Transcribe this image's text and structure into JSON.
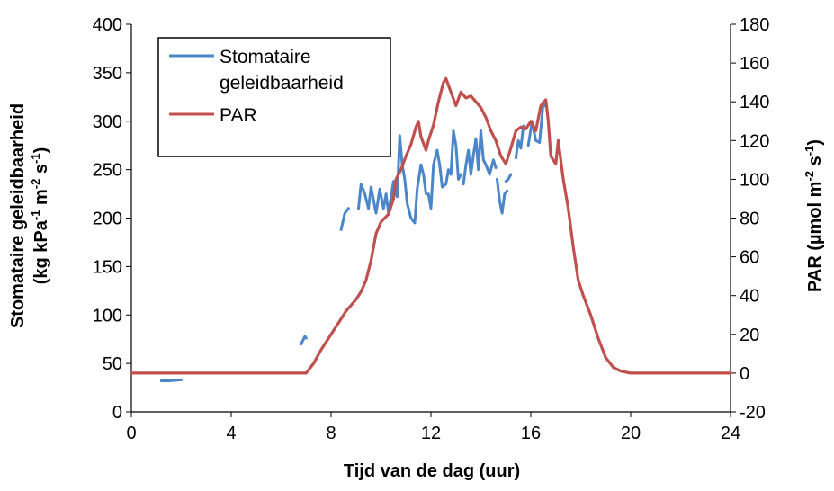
{
  "chart_data": {
    "type": "line",
    "xlabel": "Tijd van de dag (uur)",
    "ylabel_left_line1": "Stomataire geleidbaarheid",
    "ylabel_left_line2": "(kg kPa",
    "ylabel_left_sup1": "-1",
    "ylabel_left_mid": " m",
    "ylabel_left_sup2": "-2",
    "ylabel_left_mid2": " s",
    "ylabel_left_sup3": "-1",
    "ylabel_left_end": ")",
    "ylabel_right_pre": "PAR (µmol m",
    "ylabel_right_sup1": "-2",
    "ylabel_right_mid": " s",
    "ylabel_right_sup2": "-1",
    "ylabel_right_end": ")",
    "xlim": [
      0,
      24
    ],
    "ylim_left": [
      0,
      400
    ],
    "ylim_right": [
      -20,
      180
    ],
    "x_ticks": [
      "0",
      "4",
      "8",
      "12",
      "16",
      "20",
      "24"
    ],
    "y_left_ticks": [
      "0",
      "50",
      "100",
      "150",
      "200",
      "250",
      "300",
      "350",
      "400"
    ],
    "y_right_ticks": [
      "-20",
      "0",
      "20",
      "40",
      "60",
      "80",
      "100",
      "120",
      "140",
      "160",
      "180"
    ],
    "legend_position": "top-left",
    "series": [
      {
        "name_line1": "Stomataire",
        "name_line2": "geleidbaarheid",
        "axis": "left",
        "color": "#4a86c8",
        "segments": [
          [
            [
              1.2,
              32
            ],
            [
              1.5,
              32
            ],
            [
              2.0,
              33
            ]
          ],
          [
            [
              6.8,
              70
            ],
            [
              6.95,
              78
            ],
            [
              7.0,
              76
            ]
          ],
          [
            [
              8.4,
              188
            ],
            [
              8.55,
              205
            ],
            [
              8.7,
              210
            ]
          ],
          [
            [
              9.1,
              210
            ],
            [
              9.2,
              235
            ],
            [
              9.35,
              225
            ],
            [
              9.5,
              210
            ],
            [
              9.6,
              232
            ],
            [
              9.8,
              205
            ],
            [
              9.95,
              230
            ],
            [
              10.1,
              210
            ],
            [
              10.2,
              225
            ],
            [
              10.3,
              205
            ],
            [
              10.5,
              238
            ],
            [
              10.65,
              222
            ],
            [
              10.75,
              285
            ],
            [
              10.85,
              255
            ],
            [
              10.95,
              240
            ],
            [
              11.05,
              215
            ],
            [
              11.2,
              200
            ],
            [
              11.35,
              195
            ],
            [
              11.45,
              230
            ],
            [
              11.6,
              255
            ],
            [
              11.7,
              245
            ],
            [
              11.8,
              225
            ]
          ],
          [
            [
              11.9,
              225
            ],
            [
              12.0,
              210
            ],
            [
              12.1,
              255
            ],
            [
              12.25,
              270
            ],
            [
              12.35,
              255
            ],
            [
              12.45,
              232
            ],
            [
              12.6,
              235
            ],
            [
              12.7,
              250
            ],
            [
              12.8,
              245
            ],
            [
              12.9,
              290
            ],
            [
              13.0,
              275
            ],
            [
              13.1,
              240
            ],
            [
              13.2,
              245
            ]
          ],
          [
            [
              13.3,
              235
            ],
            [
              13.4,
              255
            ],
            [
              13.5,
              270
            ],
            [
              13.6,
              245
            ],
            [
              13.7,
              265
            ],
            [
              13.8,
              282
            ],
            [
              13.9,
              250
            ],
            [
              14.0,
              290
            ],
            [
              14.1,
              260
            ],
            [
              14.2,
              255
            ],
            [
              14.35,
              245
            ],
            [
              14.5,
              260
            ],
            [
              14.6,
              252
            ]
          ],
          [
            [
              14.65,
              240
            ],
            [
              14.75,
              218
            ],
            [
              14.85,
              205
            ],
            [
              14.95,
              225
            ],
            [
              15.05,
              228
            ]
          ],
          [
            [
              15.0,
              238
            ],
            [
              15.1,
              240
            ],
            [
              15.2,
              245
            ]
          ],
          [
            [
              15.4,
              262
            ],
            [
              15.5,
              280
            ],
            [
              15.6,
              272
            ],
            [
              15.7,
              295
            ]
          ],
          [
            [
              15.9,
              275
            ],
            [
              16.05,
              300
            ],
            [
              16.2,
              280
            ],
            [
              16.35,
              278
            ],
            [
              16.5,
              320
            ],
            [
              16.6,
              315
            ]
          ]
        ]
      },
      {
        "name": "PAR",
        "axis": "right",
        "color": "#c0504d",
        "points": [
          [
            0,
            0
          ],
          [
            7.0,
            0
          ],
          [
            7.3,
            5
          ],
          [
            7.6,
            12
          ],
          [
            7.9,
            18
          ],
          [
            8.1,
            22
          ],
          [
            8.4,
            28
          ],
          [
            8.6,
            32
          ],
          [
            8.8,
            35
          ],
          [
            9.0,
            38
          ],
          [
            9.2,
            42
          ],
          [
            9.4,
            48
          ],
          [
            9.6,
            58
          ],
          [
            9.8,
            72
          ],
          [
            10.0,
            78
          ],
          [
            10.3,
            82
          ],
          [
            10.5,
            90
          ],
          [
            10.6,
            100
          ],
          [
            10.8,
            105
          ],
          [
            11.0,
            112
          ],
          [
            11.2,
            118
          ],
          [
            11.4,
            127
          ],
          [
            11.5,
            130
          ],
          [
            11.6,
            122
          ],
          [
            11.8,
            115
          ],
          [
            11.9,
            120
          ],
          [
            12.1,
            128
          ],
          [
            12.3,
            140
          ],
          [
            12.5,
            150
          ],
          [
            12.6,
            152
          ],
          [
            12.8,
            145
          ],
          [
            13.0,
            138
          ],
          [
            13.2,
            145
          ],
          [
            13.4,
            142
          ],
          [
            13.6,
            143
          ],
          [
            13.8,
            140
          ],
          [
            14.0,
            137
          ],
          [
            14.2,
            132
          ],
          [
            14.4,
            125
          ],
          [
            14.6,
            120
          ],
          [
            14.8,
            112
          ],
          [
            15.0,
            108
          ],
          [
            15.2,
            116
          ],
          [
            15.4,
            125
          ],
          [
            15.6,
            127
          ],
          [
            15.8,
            126
          ],
          [
            16.0,
            130
          ],
          [
            16.2,
            125
          ],
          [
            16.4,
            138
          ],
          [
            16.6,
            141
          ],
          [
            16.7,
            130
          ],
          [
            16.8,
            112
          ],
          [
            17.0,
            108
          ],
          [
            17.1,
            120
          ],
          [
            17.3,
            100
          ],
          [
            17.5,
            85
          ],
          [
            17.7,
            65
          ],
          [
            17.9,
            48
          ],
          [
            18.1,
            40
          ],
          [
            18.4,
            30
          ],
          [
            18.7,
            18
          ],
          [
            19.0,
            8
          ],
          [
            19.3,
            3
          ],
          [
            19.6,
            1
          ],
          [
            20.0,
            0
          ],
          [
            24.0,
            0
          ]
        ]
      }
    ]
  }
}
